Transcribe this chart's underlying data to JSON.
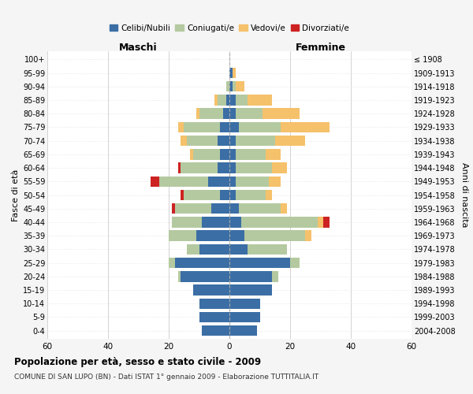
{
  "age_groups": [
    "0-4",
    "5-9",
    "10-14",
    "15-19",
    "20-24",
    "25-29",
    "30-34",
    "35-39",
    "40-44",
    "45-49",
    "50-54",
    "55-59",
    "60-64",
    "65-69",
    "70-74",
    "75-79",
    "80-84",
    "85-89",
    "90-94",
    "95-99",
    "100+"
  ],
  "birth_years": [
    "2004-2008",
    "1999-2003",
    "1994-1998",
    "1989-1993",
    "1984-1988",
    "1979-1983",
    "1974-1978",
    "1969-1973",
    "1964-1968",
    "1959-1963",
    "1954-1958",
    "1949-1953",
    "1944-1948",
    "1939-1943",
    "1934-1938",
    "1929-1933",
    "1924-1928",
    "1919-1923",
    "1914-1918",
    "1909-1913",
    "≤ 1908"
  ],
  "colors": {
    "celibe": "#3a6ea5",
    "coniugato": "#b5c9a0",
    "vedovo": "#f5c26b",
    "divorziato": "#cc2222"
  },
  "maschi": {
    "celibe": [
      9,
      10,
      10,
      12,
      16,
      18,
      10,
      11,
      9,
      6,
      3,
      7,
      4,
      3,
      4,
      3,
      2,
      1,
      0,
      0,
      0
    ],
    "coniugato": [
      0,
      0,
      0,
      0,
      1,
      2,
      4,
      9,
      10,
      12,
      12,
      16,
      12,
      9,
      10,
      12,
      8,
      3,
      1,
      0,
      0
    ],
    "vedovo": [
      0,
      0,
      0,
      0,
      0,
      0,
      0,
      0,
      0,
      0,
      0,
      0,
      0,
      1,
      2,
      2,
      1,
      1,
      0,
      0,
      0
    ],
    "divorziato": [
      0,
      0,
      0,
      0,
      0,
      0,
      0,
      0,
      0,
      1,
      1,
      3,
      1,
      0,
      0,
      0,
      0,
      0,
      0,
      0,
      0
    ]
  },
  "femmine": {
    "nubile": [
      9,
      10,
      10,
      14,
      14,
      20,
      6,
      5,
      4,
      3,
      2,
      2,
      2,
      2,
      2,
      3,
      2,
      2,
      1,
      1,
      0
    ],
    "coniugata": [
      0,
      0,
      0,
      0,
      2,
      3,
      13,
      20,
      25,
      14,
      10,
      11,
      12,
      10,
      13,
      14,
      9,
      4,
      1,
      0,
      0
    ],
    "vedova": [
      0,
      0,
      0,
      0,
      0,
      0,
      0,
      2,
      2,
      2,
      2,
      4,
      5,
      5,
      10,
      16,
      12,
      8,
      3,
      1,
      0
    ],
    "divorziata": [
      0,
      0,
      0,
      0,
      0,
      0,
      0,
      0,
      2,
      0,
      0,
      0,
      0,
      0,
      0,
      0,
      0,
      0,
      0,
      0,
      0
    ]
  },
  "xlim": 60,
  "title": "Popolazione per età, sesso e stato civile - 2009",
  "subtitle": "COMUNE DI SAN LUPO (BN) - Dati ISTAT 1° gennaio 2009 - Elaborazione TUTTITALIA.IT",
  "ylabel": "Fasce di età",
  "ylabel2": "Anni di nascita",
  "xlabel_maschi": "Maschi",
  "xlabel_femmine": "Femmine",
  "legend_labels": [
    "Celibi/Nubili",
    "Coniugati/e",
    "Vedovi/e",
    "Divorziati/e"
  ],
  "bg_color": "#f5f5f5",
  "plot_bg_color": "#ffffff"
}
